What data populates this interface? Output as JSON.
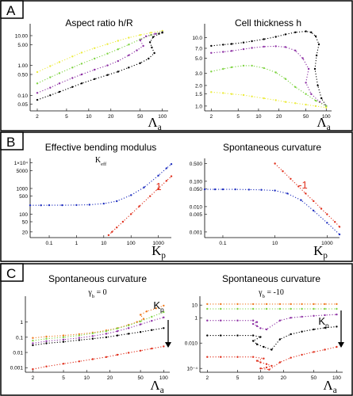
{
  "panels": [
    {
      "id": "A",
      "label": "A"
    },
    {
      "id": "B",
      "label": "B"
    },
    {
      "id": "C",
      "label": "C"
    }
  ],
  "colors": {
    "yellow": "#ecec40",
    "green": "#7fd443",
    "purple": "#8c2fa3",
    "black": "#000000",
    "blue": "#1f2fbf",
    "red": "#e0301d",
    "orange": "#f07a20",
    "border": "#000000"
  },
  "chart_data": [
    {
      "id": "A-left",
      "type": "scatter",
      "title": "Aspect ratio h/R",
      "xlabel": "Λ",
      "xlabel_sub": "a",
      "xscale": "log",
      "yscale": "log",
      "xlim": [
        1.6,
        120
      ],
      "ylim": [
        0.03,
        25
      ],
      "xticks": [
        2,
        5,
        10,
        20,
        50,
        100
      ],
      "xtick_labels": [
        "2",
        "5",
        "10",
        "20",
        "50",
        "100"
      ],
      "yticks": [
        0.05,
        0.1,
        0.5,
        1,
        5,
        10
      ],
      "ytick_labels": [
        "0.05",
        "0.10",
        "0.50",
        "1.00",
        "5.00",
        "10.00"
      ],
      "series": [
        {
          "color": "yellow",
          "x": [
            2,
            3,
            4,
            6,
            8,
            12,
            18,
            25,
            35,
            50,
            70,
            100
          ],
          "y": [
            0.6,
            0.95,
            1.3,
            2.0,
            2.7,
            3.8,
            5.2,
            6.7,
            8.5,
            10.5,
            12.5,
            14.5
          ]
        },
        {
          "color": "green",
          "x": [
            2,
            3,
            4,
            6,
            8,
            12,
            18,
            25,
            35,
            50,
            70,
            100
          ],
          "y": [
            0.25,
            0.4,
            0.55,
            0.85,
            1.15,
            1.7,
            2.5,
            3.5,
            5.0,
            7.5,
            10.5,
            13.5
          ]
        },
        {
          "color": "purple",
          "x": [
            2,
            3,
            4,
            6,
            8,
            12,
            18,
            25,
            35,
            45,
            55,
            50,
            60,
            80,
            100
          ],
          "y": [
            0.12,
            0.18,
            0.25,
            0.38,
            0.5,
            0.72,
            1.0,
            1.4,
            2.2,
            3.2,
            4.5,
            7.0,
            9.5,
            11.5,
            13.0
          ]
        },
        {
          "color": "black",
          "x": [
            2,
            3,
            4,
            6,
            8,
            12,
            18,
            25,
            35,
            50,
            65,
            78,
            72,
            68,
            75,
            90,
            100
          ],
          "y": [
            0.07,
            0.1,
            0.13,
            0.19,
            0.25,
            0.35,
            0.48,
            0.62,
            0.85,
            1.2,
            1.7,
            2.6,
            4.0,
            6.0,
            9.0,
            11.5,
            12.5
          ]
        }
      ]
    },
    {
      "id": "A-right",
      "type": "scatter",
      "title": "Cell thickness h",
      "xlabel": "Λ",
      "xlabel_sub": "a",
      "xscale": "log",
      "yscale": "log",
      "xlim": [
        1.6,
        120
      ],
      "ylim": [
        0.85,
        16
      ],
      "xticks": [
        2,
        5,
        10,
        20,
        50,
        100
      ],
      "xtick_labels": [
        "2",
        "5",
        "10",
        "20",
        "50",
        "100"
      ],
      "yticks": [
        1.0,
        1.5,
        2.0,
        3.0,
        5.0,
        7.0,
        10.0
      ],
      "ytick_labels": [
        "1.0",
        "1.5",
        "2.0",
        "3.0",
        "5.0",
        "7.0",
        "10.0"
      ],
      "series": [
        {
          "color": "black",
          "x": [
            2,
            3,
            4,
            6,
            8,
            12,
            18,
            25,
            35,
            50,
            60,
            70,
            78,
            72,
            68,
            75,
            85,
            100
          ],
          "y": [
            7.6,
            7.9,
            8.1,
            8.5,
            8.9,
            9.5,
            10.3,
            11.2,
            12.0,
            12.4,
            12.0,
            10.5,
            8.0,
            5.5,
            3.5,
            2.0,
            1.3,
            1.0
          ]
        },
        {
          "color": "purple",
          "x": [
            2,
            3,
            4,
            6,
            8,
            12,
            18,
            25,
            35,
            45,
            55,
            50,
            60,
            80,
            100
          ],
          "y": [
            6.0,
            6.2,
            6.4,
            6.8,
            7.1,
            7.4,
            7.5,
            7.3,
            6.5,
            5.0,
            3.5,
            2.2,
            1.5,
            1.15,
            1.0
          ]
        },
        {
          "color": "green",
          "x": [
            2,
            3,
            4,
            6,
            8,
            12,
            18,
            25,
            35,
            50,
            70,
            100
          ],
          "y": [
            3.2,
            3.5,
            3.7,
            3.9,
            3.9,
            3.6,
            3.1,
            2.5,
            1.9,
            1.5,
            1.2,
            1.0
          ]
        },
        {
          "color": "yellow",
          "x": [
            2,
            3,
            4,
            6,
            8,
            12,
            18,
            25,
            35,
            50,
            70,
            100
          ],
          "y": [
            1.6,
            1.55,
            1.5,
            1.45,
            1.38,
            1.3,
            1.22,
            1.15,
            1.1,
            1.05,
            1.0,
            0.95
          ]
        }
      ]
    },
    {
      "id": "B-left",
      "type": "scatter",
      "title": "Effective bending modulus",
      "subtitle": "K",
      "subtitle_sub": "eff",
      "xlabel": "K",
      "xlabel_sub": "p",
      "xscale": "log",
      "yscale": "log",
      "xlim": [
        0.02,
        3000
      ],
      "ylim": [
        12,
        15000
      ],
      "xticks": [
        0.1,
        1,
        10,
        100,
        1000
      ],
      "xtick_labels": [
        "0.1",
        "1",
        "10",
        "100",
        "1000"
      ],
      "yticks": [
        20,
        50,
        100,
        500,
        1000,
        5000,
        10000
      ],
      "ytick_labels": [
        "20",
        "50",
        "100",
        "500",
        "1000",
        "5000",
        "1×10⁴"
      ],
      "slope_label": "1",
      "series": [
        {
          "color": "blue",
          "x": [
            0.02,
            0.05,
            0.1,
            0.3,
            1,
            3,
            10,
            30,
            100,
            300,
            1000,
            2000,
            3000
          ],
          "y": [
            220,
            220,
            221,
            222,
            225,
            232,
            255,
            320,
            550,
            1100,
            3200,
            6200,
            9000
          ]
        },
        {
          "color": "red",
          "x": [
            15,
            20,
            30,
            50,
            100,
            200,
            500,
            1000,
            2000,
            3000
          ],
          "y": [
            15,
            20,
            30,
            50,
            100,
            200,
            500,
            1000,
            2000,
            3000
          ]
        }
      ]
    },
    {
      "id": "B-right",
      "type": "scatter",
      "title": "Spontaneous curvature",
      "xlabel": "K",
      "xlabel_sub": "p",
      "xscale": "log",
      "yscale": "log",
      "xlim": [
        0.02,
        3000
      ],
      "ylim": [
        0.0006,
        0.8
      ],
      "xticks": [
        0.1,
        10,
        1000
      ],
      "xtick_labels": [
        "0.1",
        "10",
        "1000"
      ],
      "yticks": [
        0.001,
        0.005,
        0.01,
        0.05,
        0.1,
        0.5
      ],
      "ytick_labels": [
        "0.001",
        "0.005",
        "0.010",
        "0.050",
        "0.100",
        "0.500"
      ],
      "slope_label": "-1",
      "series": [
        {
          "color": "blue",
          "x": [
            0.02,
            0.05,
            0.1,
            0.3,
            1,
            3,
            10,
            30,
            100,
            300,
            1000,
            3000
          ],
          "y": [
            0.048,
            0.048,
            0.048,
            0.048,
            0.047,
            0.046,
            0.043,
            0.033,
            0.018,
            0.007,
            0.0023,
            0.0008
          ]
        },
        {
          "color": "red",
          "x": [
            10,
            20,
            40,
            80,
            150,
            300,
            600,
            1000,
            2000,
            3000
          ],
          "y": [
            0.5,
            0.25,
            0.125,
            0.0625,
            0.033,
            0.0167,
            0.0083,
            0.005,
            0.0025,
            0.0016
          ]
        }
      ]
    },
    {
      "id": "C-left",
      "type": "scatter",
      "title": "Spontaneous curvature",
      "subtitle": "γ",
      "subtitle_sub": "b",
      "subtitle_rest": " = 0",
      "xlabel": "Λ",
      "xlabel_sub": "a",
      "arrow_label": "K",
      "arrow_label_sub": "p",
      "xscale": "log",
      "yscale": "log",
      "xlim": [
        1.6,
        120
      ],
      "ylim": [
        0.0005,
        50
      ],
      "xticks": [
        2,
        5,
        10,
        20,
        50,
        100
      ],
      "xtick_labels": [
        "2",
        "5",
        "10",
        "20",
        "50",
        "100"
      ],
      "yticks": [
        0.001,
        0.01,
        0.1,
        1
      ],
      "ytick_labels": [
        "0.001",
        "0.01",
        "0.1",
        "1"
      ],
      "series": [
        {
          "color": "orange",
          "x": [
            2,
            3,
            5,
            8,
            12,
            18,
            25,
            35,
            45,
            55,
            50,
            60,
            80,
            100
          ],
          "y": [
            0.09,
            0.11,
            0.13,
            0.16,
            0.2,
            0.28,
            0.4,
            0.65,
            1.0,
            1.6,
            3.0,
            5.0,
            8.0,
            12.0
          ]
        },
        {
          "color": "green",
          "x": [
            2,
            3,
            5,
            8,
            12,
            18,
            25,
            35,
            50,
            70,
            100
          ],
          "y": [
            0.06,
            0.08,
            0.1,
            0.13,
            0.18,
            0.25,
            0.38,
            0.6,
            1.1,
            2.2,
            4.5
          ]
        },
        {
          "color": "purple",
          "x": [
            2,
            3,
            5,
            8,
            12,
            18,
            25,
            35,
            50,
            70,
            100
          ],
          "y": [
            0.04,
            0.055,
            0.07,
            0.09,
            0.12,
            0.17,
            0.25,
            0.4,
            0.7,
            1.2,
            2.0
          ]
        },
        {
          "color": "black",
          "x": [
            2,
            3,
            5,
            8,
            12,
            18,
            25,
            35,
            50,
            70,
            100
          ],
          "y": [
            0.03,
            0.04,
            0.05,
            0.065,
            0.08,
            0.1,
            0.13,
            0.17,
            0.22,
            0.3,
            0.4
          ]
        },
        {
          "color": "red",
          "x": [
            2,
            3,
            5,
            8,
            12,
            18,
            25,
            35,
            50,
            70,
            100
          ],
          "y": [
            0.0008,
            0.0012,
            0.0018,
            0.0026,
            0.0036,
            0.005,
            0.007,
            0.0095,
            0.013,
            0.018,
            0.025
          ]
        }
      ]
    },
    {
      "id": "C-right",
      "type": "scatter",
      "title": "Spontaneous curvature",
      "subtitle": "γ",
      "subtitle_sub": "b",
      "subtitle_rest": " = -10",
      "xlabel": "Λ",
      "xlabel_sub": "a",
      "arrow_label": "K",
      "arrow_label_sub": "p",
      "xscale": "log",
      "yscale": "log",
      "xlim": [
        1.6,
        120
      ],
      "ylim": [
        5e-05,
        50
      ],
      "xticks": [
        2,
        5,
        10,
        20,
        50,
        100
      ],
      "xtick_labels": [
        "2",
        "5",
        "10",
        "20",
        "50",
        "100"
      ],
      "yticks": [
        0.0001,
        0.01,
        1,
        10
      ],
      "ytick_labels": [
        "10⁻⁴",
        "0.010",
        "1",
        "10"
      ],
      "series": [
        {
          "color": "orange",
          "x": [
            2,
            3,
            5,
            8,
            12,
            18,
            25,
            35,
            50,
            70,
            100
          ],
          "y": [
            12,
            12,
            12,
            12,
            12,
            12,
            12,
            12,
            12,
            12,
            12
          ]
        },
        {
          "color": "green",
          "x": [
            2,
            3,
            5,
            8,
            12,
            18,
            25,
            35,
            50,
            70,
            100
          ],
          "y": [
            5,
            5,
            5,
            5,
            5,
            5,
            5,
            5,
            5,
            5,
            5
          ]
        },
        {
          "color": "purple",
          "x": [
            2,
            3,
            5,
            8,
            9,
            8,
            9,
            10,
            12,
            18,
            25,
            35,
            50,
            70,
            100
          ],
          "y": [
            0.6,
            0.6,
            0.6,
            0.6,
            0.45,
            0.32,
            0.22,
            0.15,
            0.12,
            0.6,
            1.0,
            1.2,
            1.4,
            1.6,
            1.8
          ]
        },
        {
          "color": "black",
          "x": [
            2,
            3,
            5,
            8,
            10,
            8,
            9,
            11,
            14,
            18,
            25,
            35,
            50,
            70,
            100
          ],
          "y": [
            0.04,
            0.04,
            0.04,
            0.04,
            0.03,
            0.015,
            0.008,
            0.005,
            0.003,
            0.02,
            0.05,
            0.08,
            0.12,
            0.16,
            0.2
          ]
        },
        {
          "color": "red",
          "x": [
            2,
            3,
            5,
            8,
            11,
            9,
            10,
            12,
            14,
            12,
            10,
            13,
            18,
            25,
            35,
            50,
            70,
            100
          ],
          "y": [
            0.0008,
            0.0008,
            0.0008,
            0.0008,
            0.0006,
            0.0004,
            0.0003,
            0.00022,
            0.00016,
            0.00012,
            0.0001,
            8e-05,
            0.0003,
            0.0007,
            0.0012,
            0.002,
            0.003,
            0.005
          ]
        }
      ]
    }
  ]
}
